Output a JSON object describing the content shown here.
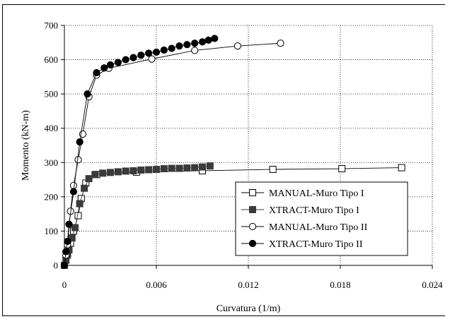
{
  "chart_data": {
    "type": "scatter",
    "title": "",
    "xlabel": "Curvatura (1/m)",
    "ylabel": "Momento (kN-m)",
    "xlim": [
      0,
      0.024
    ],
    "ylim": [
      0,
      700
    ],
    "xticks": [
      0,
      0.006,
      0.012,
      0.018,
      0.024
    ],
    "xtick_labels": [
      "0",
      "0.006",
      "0.012",
      "0.018",
      "0.024"
    ],
    "yticks": [
      0,
      100,
      200,
      300,
      400,
      500,
      600,
      700
    ],
    "ytick_labels": [
      "0",
      "100",
      "200",
      "300",
      "400",
      "500",
      "600",
      "700"
    ],
    "grid": true,
    "legend_position": "lower-right",
    "series": [
      {
        "name": "MANUAL-Muro Tipo I",
        "marker": "square-open",
        "color": "#000000",
        "x": [
          0,
          0.0002,
          0.0004,
          0.0006,
          0.0009,
          0.0011,
          0.0014,
          0.0021,
          0.0047,
          0.009,
          0.0136,
          0.0181,
          0.022
        ],
        "y": [
          0,
          35,
          65,
          100,
          145,
          195,
          240,
          265,
          272,
          276,
          280,
          282,
          285
        ]
      },
      {
        "name": "XTRACT-Muro Tipo I",
        "marker": "square-filled",
        "color": "#3a3a3a",
        "x": [
          0,
          0.0001,
          0.0002,
          0.0003,
          0.0005,
          0.0007,
          0.001,
          0.0013,
          0.0016,
          0.002,
          0.0025,
          0.003,
          0.0035,
          0.004,
          0.0045,
          0.005,
          0.0055,
          0.006,
          0.0065,
          0.007,
          0.0075,
          0.008,
          0.0085,
          0.009,
          0.0095
        ],
        "y": [
          0,
          15,
          30,
          45,
          80,
          110,
          180,
          225,
          253,
          265,
          269,
          271,
          273,
          275,
          276,
          278,
          279,
          280,
          282,
          283,
          283,
          284,
          285,
          287,
          290
        ]
      },
      {
        "name": "MANUAL-Muro Tipo II",
        "marker": "circle-open",
        "color": "#000000",
        "x": [
          0,
          0.0001,
          0.0002,
          0.0004,
          0.0006,
          0.0009,
          0.0012,
          0.0016,
          0.0021,
          0.0029,
          0.0057,
          0.0085,
          0.0113,
          0.0141
        ],
        "y": [
          0,
          30,
          60,
          158,
          233,
          308,
          383,
          492,
          555,
          575,
          602,
          627,
          640,
          648
        ]
      },
      {
        "name": "XTRACT-Muro Tipo II",
        "marker": "circle-filled",
        "color": "#000000",
        "x": [
          0,
          0.0001,
          0.0002,
          0.0003,
          0.0006,
          0.001,
          0.0015,
          0.0021,
          0.0026,
          0.003,
          0.0035,
          0.004,
          0.0045,
          0.005,
          0.0055,
          0.006,
          0.0065,
          0.007,
          0.0075,
          0.008,
          0.0085,
          0.009,
          0.0094,
          0.0098
        ],
        "y": [
          0,
          40,
          70,
          120,
          215,
          360,
          500,
          562,
          576,
          585,
          592,
          600,
          606,
          613,
          619,
          622,
          628,
          633,
          640,
          644,
          648,
          652,
          657,
          662
        ]
      }
    ]
  }
}
